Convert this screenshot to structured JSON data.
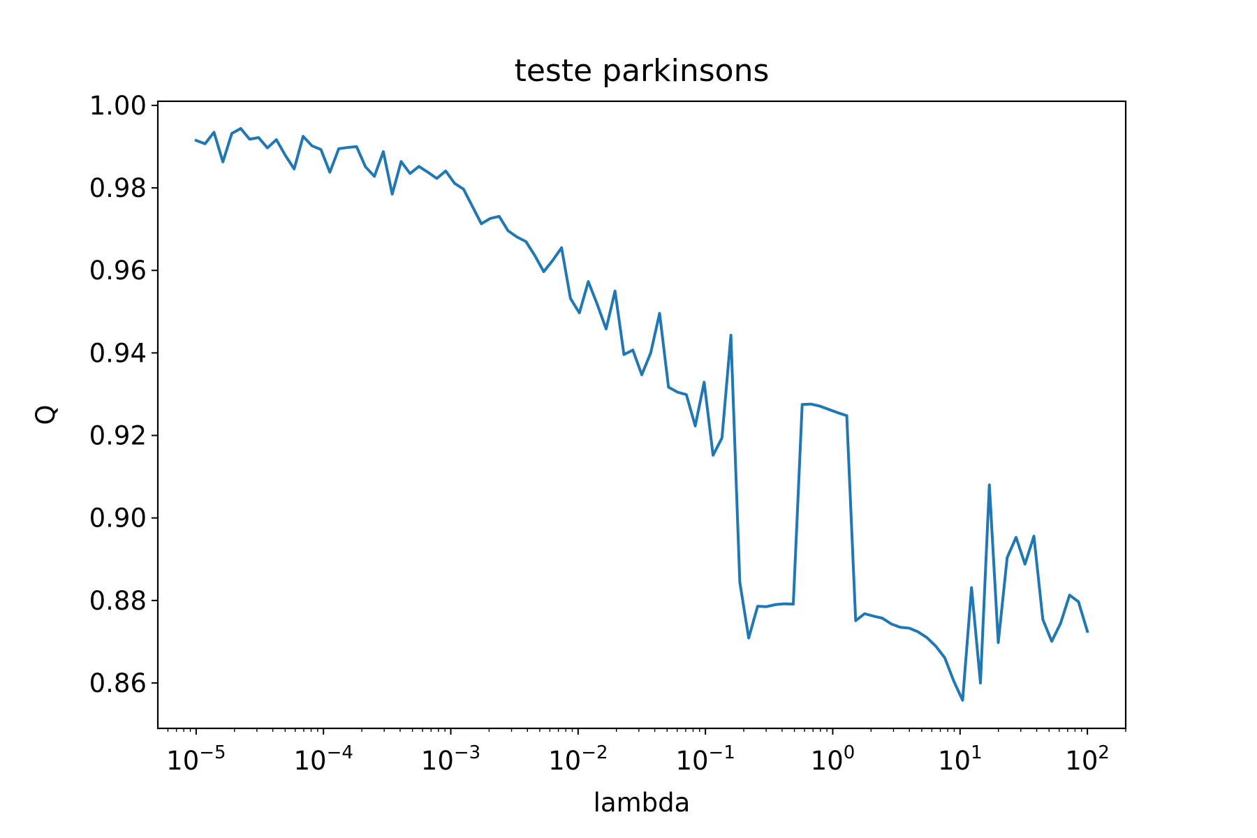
{
  "chart_data": {
    "type": "line",
    "title": "teste parkinsons",
    "xlabel": "lambda",
    "ylabel": "Q",
    "x_scale": "log",
    "xlim": [
      5e-06,
      200
    ],
    "ylim": [
      0.849,
      1.001
    ],
    "grid": false,
    "x_ticks": [
      {
        "value": 1e-05,
        "base": "10",
        "exp": "−5"
      },
      {
        "value": 0.0001,
        "base": "10",
        "exp": "−4"
      },
      {
        "value": 0.001,
        "base": "10",
        "exp": "−3"
      },
      {
        "value": 0.01,
        "base": "10",
        "exp": "−2"
      },
      {
        "value": 0.1,
        "base": "10",
        "exp": "−1"
      },
      {
        "value": 1,
        "base": "10",
        "exp": "0"
      },
      {
        "value": 10,
        "base": "10",
        "exp": "1"
      },
      {
        "value": 100,
        "base": "10",
        "exp": "2"
      }
    ],
    "y_ticks": [
      {
        "value": 0.86,
        "label": "0.86"
      },
      {
        "value": 0.88,
        "label": "0.88"
      },
      {
        "value": 0.9,
        "label": "0.90"
      },
      {
        "value": 0.92,
        "label": "0.92"
      },
      {
        "value": 0.94,
        "label": "0.94"
      },
      {
        "value": 0.96,
        "label": "0.96"
      },
      {
        "value": 0.98,
        "label": "0.98"
      },
      {
        "value": 1.0,
        "label": "1.00"
      }
    ],
    "series": [
      {
        "color": "#1f77b4",
        "x_range": [
          1e-05,
          100
        ],
        "points_count": 100,
        "values": [
          0.9915,
          0.9907,
          0.9935,
          0.9863,
          0.9932,
          0.9944,
          0.9918,
          0.9922,
          0.9897,
          0.9917,
          0.9879,
          0.9846,
          0.9925,
          0.9902,
          0.9893,
          0.9838,
          0.9895,
          0.9898,
          0.99,
          0.9851,
          0.9828,
          0.9888,
          0.9785,
          0.9864,
          0.9835,
          0.9852,
          0.9838,
          0.9823,
          0.9841,
          0.9811,
          0.9797,
          0.9755,
          0.9713,
          0.9726,
          0.9731,
          0.9696,
          0.9681,
          0.967,
          0.9636,
          0.9597,
          0.9624,
          0.9655,
          0.9532,
          0.9497,
          0.9573,
          0.9518,
          0.9458,
          0.955,
          0.9396,
          0.9407,
          0.9347,
          0.94,
          0.9496,
          0.9317,
          0.9305,
          0.9299,
          0.9223,
          0.9329,
          0.9152,
          0.9194,
          0.9443,
          0.8844,
          0.8709,
          0.8786,
          0.8785,
          0.879,
          0.8792,
          0.8791,
          0.9275,
          0.9276,
          0.9271,
          0.9263,
          0.9255,
          0.9248,
          0.8751,
          0.8768,
          0.8762,
          0.8757,
          0.8743,
          0.8735,
          0.8733,
          0.8724,
          0.871,
          0.8689,
          0.8661,
          0.8605,
          0.8558,
          0.8831,
          0.86,
          0.908,
          0.8698,
          0.8904,
          0.8953,
          0.8888,
          0.8956,
          0.8754,
          0.8701,
          0.8745,
          0.8813,
          0.8797,
          0.8725
        ]
      }
    ]
  }
}
